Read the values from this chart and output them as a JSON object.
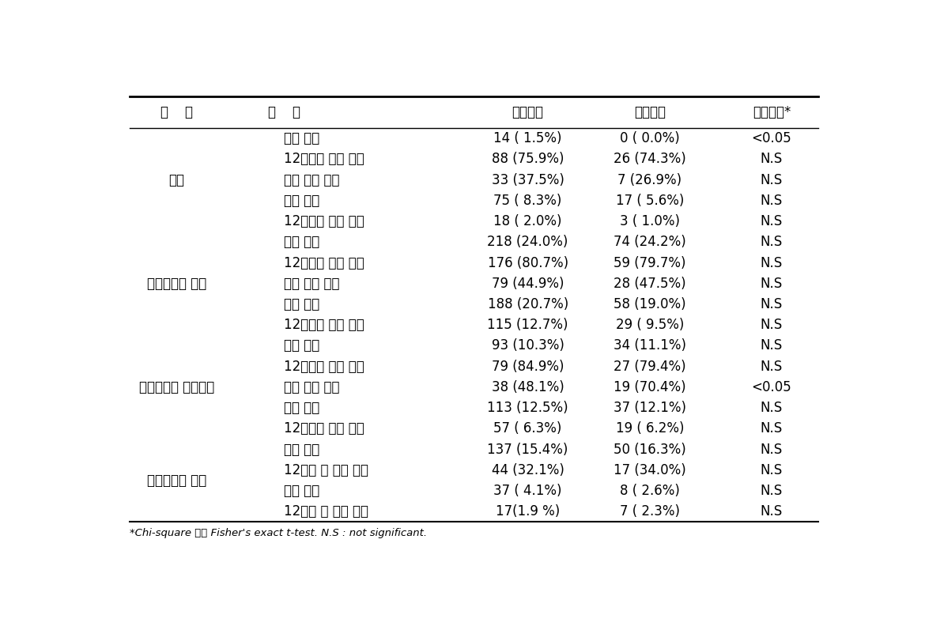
{
  "footnote": "*Chi-square 또는 Fisher's exact t-test. N.S : not significant.",
  "headers": [
    "항    목",
    "구    분",
    "노출지역",
    "비교지역",
    "유의수준*"
  ],
  "rows": [
    {
      "category": "천식",
      "sub": "천명 경험",
      "exposed": "14 ( 1.5%)",
      "compare": "0 ( 0.0%)",
      "sig": "<0.05"
    },
    {
      "category": "",
      "sub": "12개월내 증상 경험",
      "exposed": "88 (75.9%)",
      "compare": "26 (74.3%)",
      "sig": "N.S"
    },
    {
      "category": "",
      "sub": "수면 방해 경험",
      "exposed": "33 (37.5%)",
      "compare": "7 (26.9%)",
      "sig": "N.S"
    },
    {
      "category": "",
      "sub": "진단 경험",
      "exposed": "75 ( 8.3%)",
      "compare": "17 ( 5.6%)",
      "sig": "N.S"
    },
    {
      "category": "",
      "sub": "12개월내 치료 경험",
      "exposed": "18 ( 2.0%)",
      "compare": "3 ( 1.0%)",
      "sig": "N.S"
    },
    {
      "category": "알레르기성 비염",
      "sub": "증상 경험",
      "exposed": "218 (24.0%)",
      "compare": "74 (24.2%)",
      "sig": "N.S"
    },
    {
      "category": "",
      "sub": "12개월내 증상 경험",
      "exposed": "176 (80.7%)",
      "compare": "59 (79.7%)",
      "sig": "N.S"
    },
    {
      "category": "",
      "sub": "동반 증상 경험",
      "exposed": "79 (44.9%)",
      "compare": "28 (47.5%)",
      "sig": "N.S"
    },
    {
      "category": "",
      "sub": "진단 경험",
      "exposed": "188 (20.7%)",
      "compare": "58 (19.0%)",
      "sig": "N.S"
    },
    {
      "category": "",
      "sub": "12개월내 치료 경험",
      "exposed": "115 (12.7%)",
      "compare": "29 ( 9.5%)",
      "sig": "N.S"
    },
    {
      "category": "알레르기성 피부질환",
      "sub": "증상 경험",
      "exposed": "93 (10.3%)",
      "compare": "34 (11.1%)",
      "sig": "N.S"
    },
    {
      "category": "",
      "sub": "12개월내 증상 경험",
      "exposed": "79 (84.9%)",
      "compare": "27 (79.4%)",
      "sig": "N.S"
    },
    {
      "category": "",
      "sub": "수면 방해 경험",
      "exposed": "38 (48.1%)",
      "compare": "19 (70.4%)",
      "sig": "<0.05"
    },
    {
      "category": "",
      "sub": "진단 경험",
      "exposed": "113 (12.5%)",
      "compare": "37 (12.1%)",
      "sig": "N.S"
    },
    {
      "category": "",
      "sub": "12개월내 치료 경험",
      "exposed": "57 ( 6.3%)",
      "compare": "19 ( 6.2%)",
      "sig": "N.S"
    },
    {
      "category": "알레르기성 눈병",
      "sub": "증상 경험",
      "exposed": "137 (15.4%)",
      "compare": "50 (16.3%)",
      "sig": "N.S"
    },
    {
      "category": "",
      "sub": "12개월 내 증상 경험",
      "exposed": "44 (32.1%)",
      "compare": "17 (34.0%)",
      "sig": "N.S"
    },
    {
      "category": "",
      "sub": "진단 경험",
      "exposed": "37 ( 4.1%)",
      "compare": "8 ( 2.6%)",
      "sig": "N.S"
    },
    {
      "category": "",
      "sub": "12개월 내 치료 경험",
      "exposed": "17(1.9 %)",
      "compare": "7 ( 2.3%)",
      "sig": "N.S"
    }
  ],
  "group_sizes": [
    5,
    5,
    5,
    4
  ],
  "group_ends": [
    4,
    9,
    14
  ],
  "background_color": "#ffffff",
  "text_color": "#000000",
  "font_size": 12,
  "header_font_size": 12
}
